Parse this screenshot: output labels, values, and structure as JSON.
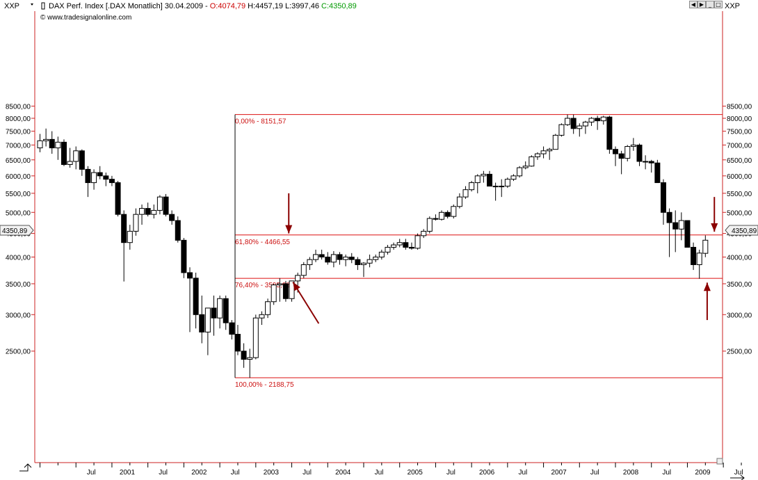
{
  "header": {
    "symbol_left": "XXP",
    "symbol_right": "XXP",
    "title_prefix": "DAX Perf. Index [.DAX  Monatlich] 30.04.2009 - ",
    "open": "O:4074,79",
    "high": "H:4457,19",
    "low": "L:3997,46",
    "close": "C:4350,89",
    "copyright": "© www.tradesignalonline.com",
    "last_price_label": "4350,89"
  },
  "colors": {
    "axis_frame": "#cc2222",
    "fib_line": "#dd1111",
    "fib_text": "#cc1111",
    "arrow": "#8b0000",
    "candle_body": "#000000",
    "open_price": "#cc0000",
    "close_price": "#009900",
    "background": "#ffffff"
  },
  "chart_data": {
    "type": "candlestick",
    "title": "DAX Perf. Index [.DAX  Monatlich] 30.04.2009",
    "y_scale": "log",
    "ylim": [
      2130,
      8640
    ],
    "yticks": [
      2500,
      3000,
      3500,
      4000,
      4500,
      5000,
      5500,
      6000,
      6500,
      7000,
      7500,
      8000,
      8500
    ],
    "ytick_labels": [
      "2500,00",
      "3000,00",
      "3500,00",
      "4000,00",
      "4500,00",
      "5000,00",
      "5500,00",
      "6000,00",
      "6500,00",
      "7000,00",
      "7500,00",
      "8000,00",
      "8500,00"
    ],
    "x_labels": [
      {
        "label": "Jul",
        "index": 6
      },
      {
        "label": "2001",
        "index": 12
      },
      {
        "label": "Jul",
        "index": 18
      },
      {
        "label": "2002",
        "index": 24
      },
      {
        "label": "Jul",
        "index": 30
      },
      {
        "label": "2003",
        "index": 36
      },
      {
        "label": "Jul",
        "index": 42
      },
      {
        "label": "2004",
        "index": 48
      },
      {
        "label": "Jul",
        "index": 54
      },
      {
        "label": "2005",
        "index": 60
      },
      {
        "label": "Jul",
        "index": 66
      },
      {
        "label": "2006",
        "index": 72
      },
      {
        "label": "Jul",
        "index": 78
      },
      {
        "label": "2007",
        "index": 84
      },
      {
        "label": "Jul",
        "index": 90
      },
      {
        "label": "2008",
        "index": 96
      },
      {
        "label": "Jul",
        "index": 102
      },
      {
        "label": "2009",
        "index": 108
      },
      {
        "label": "Jul",
        "index": 114
      }
    ],
    "candles": [
      {
        "o": 6900,
        "h": 7400,
        "l": 6750,
        "c": 7150
      },
      {
        "o": 7150,
        "h": 7600,
        "l": 6950,
        "c": 7200
      },
      {
        "o": 7200,
        "h": 7500,
        "l": 6700,
        "c": 6900
      },
      {
        "o": 6900,
        "h": 7300,
        "l": 6500,
        "c": 7100
      },
      {
        "o": 7100,
        "h": 7200,
        "l": 6300,
        "c": 6350
      },
      {
        "o": 6350,
        "h": 6900,
        "l": 6250,
        "c": 6450
      },
      {
        "o": 6450,
        "h": 6950,
        "l": 6200,
        "c": 6800
      },
      {
        "o": 6800,
        "h": 6850,
        "l": 6000,
        "c": 6200
      },
      {
        "o": 6200,
        "h": 6300,
        "l": 5400,
        "c": 5800
      },
      {
        "o": 5800,
        "h": 6200,
        "l": 5600,
        "c": 6100
      },
      {
        "o": 6100,
        "h": 6300,
        "l": 5900,
        "c": 6000
      },
      {
        "o": 6000,
        "h": 6100,
        "l": 5700,
        "c": 5900
      },
      {
        "o": 5900,
        "h": 6000,
        "l": 5700,
        "c": 5800
      },
      {
        "o": 5800,
        "h": 5850,
        "l": 4900,
        "c": 4950
      },
      {
        "o": 4950,
        "h": 5050,
        "l": 3540,
        "c": 4300
      },
      {
        "o": 4300,
        "h": 4700,
        "l": 4150,
        "c": 4550
      },
      {
        "o": 4550,
        "h": 5100,
        "l": 4450,
        "c": 4950
      },
      {
        "o": 4950,
        "h": 5200,
        "l": 4700,
        "c": 5100
      },
      {
        "o": 5100,
        "h": 5250,
        "l": 4900,
        "c": 4950
      },
      {
        "o": 4950,
        "h": 5200,
        "l": 4850,
        "c": 5050
      },
      {
        "o": 5050,
        "h": 5450,
        "l": 4950,
        "c": 5400
      },
      {
        "o": 5400,
        "h": 5480,
        "l": 4900,
        "c": 4950
      },
      {
        "o": 4950,
        "h": 5050,
        "l": 4700,
        "c": 4800
      },
      {
        "o": 4800,
        "h": 4900,
        "l": 4300,
        "c": 4350
      },
      {
        "o": 4350,
        "h": 4400,
        "l": 3600,
        "c": 3700
      },
      {
        "o": 3700,
        "h": 3800,
        "l": 2750,
        "c": 3600
      },
      {
        "o": 3600,
        "h": 3700,
        "l": 2800,
        "c": 3000
      },
      {
        "o": 3000,
        "h": 3300,
        "l": 2600,
        "c": 2750
      },
      {
        "o": 2750,
        "h": 3100,
        "l": 2450,
        "c": 3100
      },
      {
        "o": 3100,
        "h": 3300,
        "l": 2700,
        "c": 2950
      },
      {
        "o": 2950,
        "h": 3300,
        "l": 2800,
        "c": 3250
      },
      {
        "o": 3250,
        "h": 3300,
        "l": 2780,
        "c": 2880
      },
      {
        "o": 2880,
        "h": 2920,
        "l": 2650,
        "c": 2720
      },
      {
        "o": 2720,
        "h": 2850,
        "l": 2450,
        "c": 2500
      },
      {
        "o": 2500,
        "h": 2600,
        "l": 2300,
        "c": 2400
      },
      {
        "o": 2400,
        "h": 2530,
        "l": 2188,
        "c": 2420
      },
      {
        "o": 2420,
        "h": 3000,
        "l": 2400,
        "c": 2950
      },
      {
        "o": 2950,
        "h": 3050,
        "l": 2850,
        "c": 3000
      },
      {
        "o": 3000,
        "h": 3250,
        "l": 2950,
        "c": 3200
      },
      {
        "o": 3200,
        "h": 3500,
        "l": 3150,
        "c": 3480
      },
      {
        "o": 3480,
        "h": 3600,
        "l": 3200,
        "c": 3500
      },
      {
        "o": 3500,
        "h": 3550,
        "l": 3200,
        "c": 3250
      },
      {
        "o": 3250,
        "h": 3550,
        "l": 3200,
        "c": 3550
      },
      {
        "o": 3550,
        "h": 3700,
        "l": 3350,
        "c": 3650
      },
      {
        "o": 3650,
        "h": 3900,
        "l": 3600,
        "c": 3850
      },
      {
        "o": 3850,
        "h": 4000,
        "l": 3750,
        "c": 3950
      },
      {
        "o": 3950,
        "h": 4150,
        "l": 3900,
        "c": 4050
      },
      {
        "o": 4050,
        "h": 4150,
        "l": 3950,
        "c": 4000
      },
      {
        "o": 4000,
        "h": 4100,
        "l": 3850,
        "c": 3900
      },
      {
        "o": 3900,
        "h": 4120,
        "l": 3800,
        "c": 4050
      },
      {
        "o": 4050,
        "h": 4100,
        "l": 3850,
        "c": 3950
      },
      {
        "o": 3950,
        "h": 4050,
        "l": 3820,
        "c": 4000
      },
      {
        "o": 4000,
        "h": 4080,
        "l": 3880,
        "c": 3950
      },
      {
        "o": 3950,
        "h": 4000,
        "l": 3750,
        "c": 3850
      },
      {
        "o": 3850,
        "h": 3900,
        "l": 3620,
        "c": 3880
      },
      {
        "o": 3880,
        "h": 4050,
        "l": 3800,
        "c": 3950
      },
      {
        "o": 3950,
        "h": 4050,
        "l": 3900,
        "c": 4000
      },
      {
        "o": 4000,
        "h": 4150,
        "l": 3950,
        "c": 4100
      },
      {
        "o": 4100,
        "h": 4250,
        "l": 4050,
        "c": 4200
      },
      {
        "o": 4200,
        "h": 4300,
        "l": 4150,
        "c": 4250
      },
      {
        "o": 4250,
        "h": 4380,
        "l": 4200,
        "c": 4300
      },
      {
        "o": 4300,
        "h": 4380,
        "l": 4150,
        "c": 4200
      },
      {
        "o": 4200,
        "h": 4300,
        "l": 4150,
        "c": 4180
      },
      {
        "o": 4180,
        "h": 4500,
        "l": 4150,
        "c": 4450
      },
      {
        "o": 4450,
        "h": 4600,
        "l": 4400,
        "c": 4550
      },
      {
        "o": 4550,
        "h": 4900,
        "l": 4500,
        "c": 4850
      },
      {
        "o": 4850,
        "h": 4950,
        "l": 4800,
        "c": 4830
      },
      {
        "o": 4830,
        "h": 5050,
        "l": 4800,
        "c": 5000
      },
      {
        "o": 5000,
        "h": 5050,
        "l": 4850,
        "c": 4900
      },
      {
        "o": 4900,
        "h": 5200,
        "l": 4850,
        "c": 5150
      },
      {
        "o": 5150,
        "h": 5500,
        "l": 5100,
        "c": 5400
      },
      {
        "o": 5400,
        "h": 5700,
        "l": 5350,
        "c": 5600
      },
      {
        "o": 5600,
        "h": 5850,
        "l": 5550,
        "c": 5800
      },
      {
        "o": 5800,
        "h": 6050,
        "l": 5500,
        "c": 6000
      },
      {
        "o": 6000,
        "h": 6150,
        "l": 5800,
        "c": 6050
      },
      {
        "o": 6050,
        "h": 6150,
        "l": 5700,
        "c": 5700
      },
      {
        "o": 5700,
        "h": 5800,
        "l": 5300,
        "c": 5700
      },
      {
        "o": 5700,
        "h": 5900,
        "l": 5400,
        "c": 5700
      },
      {
        "o": 5700,
        "h": 5950,
        "l": 5650,
        "c": 5900
      },
      {
        "o": 5900,
        "h": 6050,
        "l": 5850,
        "c": 6000
      },
      {
        "o": 6000,
        "h": 6300,
        "l": 5950,
        "c": 6250
      },
      {
        "o": 6250,
        "h": 6450,
        "l": 6200,
        "c": 6300
      },
      {
        "o": 6300,
        "h": 6650,
        "l": 6280,
        "c": 6600
      },
      {
        "o": 6600,
        "h": 6750,
        "l": 6500,
        "c": 6700
      },
      {
        "o": 6700,
        "h": 6950,
        "l": 6550,
        "c": 6800
      },
      {
        "o": 6800,
        "h": 6900,
        "l": 6500,
        "c": 6850
      },
      {
        "o": 6850,
        "h": 7400,
        "l": 6850,
        "c": 7350
      },
      {
        "o": 7350,
        "h": 7800,
        "l": 7300,
        "c": 7750
      },
      {
        "o": 7750,
        "h": 8150,
        "l": 7700,
        "c": 8000
      },
      {
        "o": 8000,
        "h": 8151,
        "l": 7400,
        "c": 7600
      },
      {
        "o": 7600,
        "h": 7800,
        "l": 7300,
        "c": 7700
      },
      {
        "o": 7700,
        "h": 7900,
        "l": 7400,
        "c": 7850
      },
      {
        "o": 7850,
        "h": 8050,
        "l": 7700,
        "c": 8000
      },
      {
        "o": 8000,
        "h": 8100,
        "l": 7550,
        "c": 7900
      },
      {
        "o": 7900,
        "h": 8100,
        "l": 7750,
        "c": 8050
      },
      {
        "o": 8050,
        "h": 8100,
        "l": 6700,
        "c": 6850
      },
      {
        "o": 6850,
        "h": 6950,
        "l": 6300,
        "c": 6700
      },
      {
        "o": 6700,
        "h": 6800,
        "l": 6050,
        "c": 6550
      },
      {
        "o": 6550,
        "h": 7000,
        "l": 6450,
        "c": 6950
      },
      {
        "o": 6950,
        "h": 7250,
        "l": 6800,
        "c": 7000
      },
      {
        "o": 7000,
        "h": 7050,
        "l": 6300,
        "c": 6450
      },
      {
        "o": 6450,
        "h": 6650,
        "l": 6200,
        "c": 6450
      },
      {
        "o": 6450,
        "h": 6500,
        "l": 6100,
        "c": 6400
      },
      {
        "o": 6400,
        "h": 6500,
        "l": 5800,
        "c": 5800
      },
      {
        "o": 5800,
        "h": 5900,
        "l": 4700,
        "c": 5000
      },
      {
        "o": 5000,
        "h": 5100,
        "l": 4000,
        "c": 4750
      },
      {
        "o": 4750,
        "h": 5050,
        "l": 4100,
        "c": 4600
      },
      {
        "o": 4600,
        "h": 5000,
        "l": 4350,
        "c": 4800
      },
      {
        "o": 4800,
        "h": 4800,
        "l": 4200,
        "c": 4200
      },
      {
        "o": 4200,
        "h": 4300,
        "l": 3750,
        "c": 3850
      },
      {
        "o": 3850,
        "h": 4150,
        "l": 3589,
        "c": 4080
      },
      {
        "o": 4075,
        "h": 4457,
        "l": 3997,
        "c": 4351
      }
    ],
    "fib_levels": [
      {
        "label": "0,00% - 8151,57",
        "value": 8151.57
      },
      {
        "label": "61,80% - 4466,55",
        "value": 4466.55
      },
      {
        "label": "76,40% - 3595,98",
        "value": 3595.98
      },
      {
        "label": "100,00% - 2188,75",
        "value": 2188.75
      }
    ],
    "annotations": [
      {
        "type": "arrow",
        "from": {
          "index": 41.5,
          "value": 5500
        },
        "to": {
          "index": 41.5,
          "value": 4500
        },
        "direction": "down"
      },
      {
        "type": "arrow",
        "from": {
          "index": 46.5,
          "value": 2870
        },
        "to": {
          "index": 42.2,
          "value": 3530
        },
        "direction": "up-left"
      },
      {
        "type": "arrow",
        "from": {
          "index": 112.5,
          "value": 5400
        },
        "to": {
          "index": 112.5,
          "value": 4540
        },
        "direction": "down"
      },
      {
        "type": "arrow",
        "from": {
          "index": 111.3,
          "value": 2920
        },
        "to": {
          "index": 111.3,
          "value": 3520
        },
        "direction": "up"
      }
    ]
  }
}
